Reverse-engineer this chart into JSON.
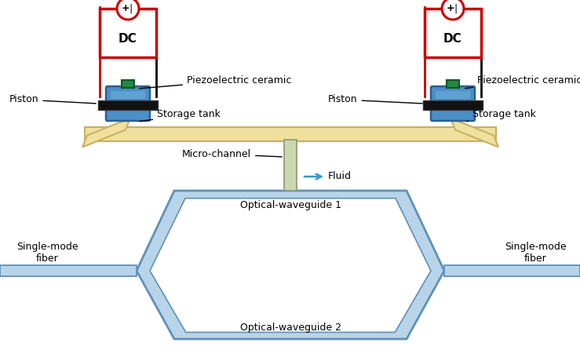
{
  "bg_color": "#ffffff",
  "waveguide_fill": "#b8d4e8",
  "waveguide_edge": "#6090b8",
  "tank_fill": "#4a8fc8",
  "tank_fill2": "#6aaad8",
  "tank_edge": "#2a6090",
  "piston_fill": "#111111",
  "tube_fill": "#f0e0a0",
  "tube_edge": "#c8b060",
  "dc_border": "#cc0000",
  "dc_text": "DC",
  "micro_fill": "#c8d8b0",
  "micro_edge": "#8a9870",
  "fluid_color": "#3399cc",
  "piezo_fill": "#228844",
  "piezo_edge": "#115522",
  "wire_black": "#000000",
  "labels": {
    "dc": "DC",
    "piezo": "Piezoelectric ceramic",
    "piston": "Piston",
    "storage": "Storage tank",
    "micro": "Micro-channel",
    "fluid": "Fluid",
    "wg1": "Optical-waveguide 1",
    "wg2": "Optical-waveguide 2",
    "fiber_left": "Single-mode\nfiber",
    "fiber_right": "Single-mode\nfiber"
  }
}
